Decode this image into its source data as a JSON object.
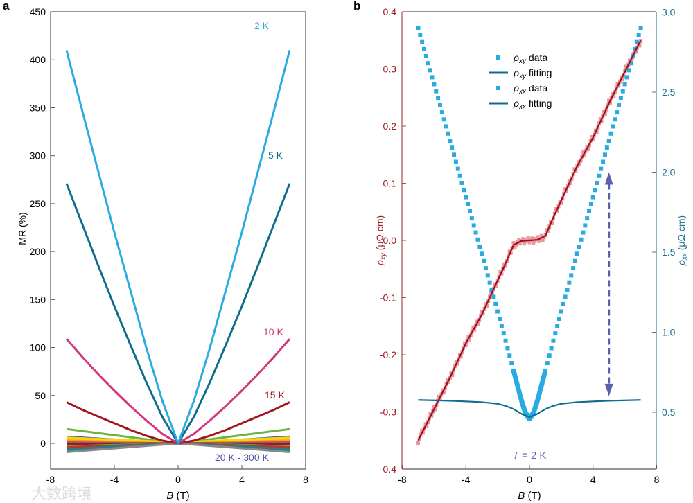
{
  "watermark": "大数跨境",
  "chart_data": [
    {
      "panel": "a",
      "type": "line",
      "xlabel_italic": "B",
      "xlabel_unit": " (T)",
      "ylabel": "MR (%)",
      "xlim": [
        -8,
        8
      ],
      "ylim": [
        -25,
        450
      ],
      "xticks": [
        -8,
        -4,
        0,
        4,
        8
      ],
      "yticks": [
        0,
        50,
        100,
        150,
        200,
        250,
        300,
        350,
        400,
        450
      ],
      "B_abs": [
        0,
        1,
        2,
        3,
        4,
        5,
        6,
        7
      ],
      "symmetric": true,
      "series": [
        {
          "name": "2 K",
          "color": "#29abe2",
          "values": [
            0,
            45,
            100,
            160,
            220,
            283,
            346,
            410
          ]
        },
        {
          "name": "5 K",
          "color": "#0f6d8c",
          "values": [
            0,
            28,
            64,
            103,
            143,
            185,
            228,
            271
          ]
        },
        {
          "name": "10 K",
          "color": "#d4367c",
          "values": [
            0,
            10,
            24,
            39,
            55,
            72,
            90,
            109
          ]
        },
        {
          "name": "15 K",
          "color": "#a3161e",
          "values": [
            0,
            3,
            8,
            14,
            21,
            28,
            35,
            43
          ]
        }
      ],
      "high_T_series": {
        "label": "20 K - 300 K",
        "label_color": "#4d56a5",
        "end_values": [
          15,
          7,
          5,
          4,
          3,
          1,
          0,
          -1,
          -3,
          -4,
          -6,
          -8,
          -9
        ],
        "colors": [
          "#6db33f",
          "#3b4ea0",
          "#f2cf1c",
          "#f5d800",
          "#f39a1e",
          "#d4367c",
          "#2f8f6a",
          "#a3161e",
          "#6db33f",
          "#b5382c",
          "#1e7f8e",
          "#5b6e7a",
          "#888888"
        ]
      },
      "annotations": [
        "2 K",
        "5 K",
        "10 K",
        "15 K"
      ]
    },
    {
      "panel": "b",
      "type": "scatter+line",
      "xlabel_italic": "B",
      "xlabel_unit": " (T)",
      "ylabel_left_sym": "ρ",
      "ylabel_left_sub": "xy",
      "ylabel_left_unit": " (μΩ cm)",
      "ylabel_right_sym": "ρ",
      "ylabel_right_sub": "xx",
      "ylabel_right_unit": " (μΩ cm)",
      "xlim": [
        -8,
        8
      ],
      "ylim_left": [
        -0.4,
        0.4
      ],
      "ylim_right": [
        0.143,
        3.0
      ],
      "xticks": [
        -8,
        -4,
        0,
        4,
        8
      ],
      "yticks_left": [
        "-0.4",
        "-0.3",
        "-0.2",
        "-0.1",
        "0.0",
        "0.1",
        "0.2",
        "0.3",
        "0.4"
      ],
      "yticks_right": [
        "0.5",
        "1.0",
        "1.5",
        "2.0",
        "2.5",
        "3.0"
      ],
      "left_color": "#9e1b22",
      "right_color": "#17708d",
      "legend": [
        {
          "sym": "ρ",
          "sub": "xy",
          "text": " data",
          "kind": "marker",
          "color": "#29abe2"
        },
        {
          "sym": "ρ",
          "sub": "xy",
          "text": " fitting",
          "kind": "line",
          "color": "#0f6d8c"
        },
        {
          "sym": "ρ",
          "sub": "xx",
          "text": " data",
          "kind": "marker",
          "color": "#29abe2"
        },
        {
          "sym": "ρ",
          "sub": "xx",
          "text": " fitting",
          "kind": "line",
          "color": "#0f6d8c"
        }
      ],
      "rho_xy": {
        "B_abs": [
          0,
          0.5,
          1,
          1.5,
          2,
          2.5,
          3,
          4,
          5,
          6,
          7
        ],
        "antisymmetric": true,
        "values": [
          0,
          0.001,
          0.008,
          0.04,
          0.07,
          0.1,
          0.13,
          0.18,
          0.24,
          0.295,
          0.35
        ],
        "data_color": "#e8979d",
        "fit_color": "#9e1020"
      },
      "rho_xx_data": {
        "B_abs": [
          0,
          0.25,
          0.5,
          0.75,
          1,
          1.25,
          1.5,
          1.75,
          2,
          2.25,
          2.5,
          2.75,
          3,
          3.25,
          3.5,
          3.75,
          4,
          4.25,
          4.5,
          4.75,
          5,
          5.25,
          5.5,
          5.75,
          6,
          6.25,
          6.5,
          6.75,
          7
        ],
        "symmetric": true,
        "values": [
          0.46,
          0.494,
          0.572,
          0.665,
          0.76,
          0.854,
          0.947,
          1.039,
          1.13,
          1.221,
          1.311,
          1.4,
          1.49,
          1.579,
          1.667,
          1.756,
          1.844,
          1.933,
          2.021,
          2.109,
          2.197,
          2.286,
          2.374,
          2.462,
          2.55,
          2.637,
          2.725,
          2.813,
          2.901
        ],
        "color": "#29abe2"
      },
      "rho_xx_fit": {
        "B_abs": [
          0,
          0.5,
          1,
          1.5,
          2,
          3,
          4,
          5,
          7
        ],
        "symmetric": true,
        "values": [
          0.47,
          0.49,
          0.52,
          0.54,
          0.553,
          0.563,
          0.568,
          0.572,
          0.577
        ],
        "color": "#0f6d8c"
      },
      "arrow": {
        "B": 5,
        "from": 0.6,
        "to": 2.0,
        "color": "#5b5fb0"
      },
      "annotation": {
        "italic": "T",
        "text": " = 2 K",
        "color": "#5b5fb0"
      }
    }
  ],
  "panel_labels": [
    "a",
    "b"
  ]
}
